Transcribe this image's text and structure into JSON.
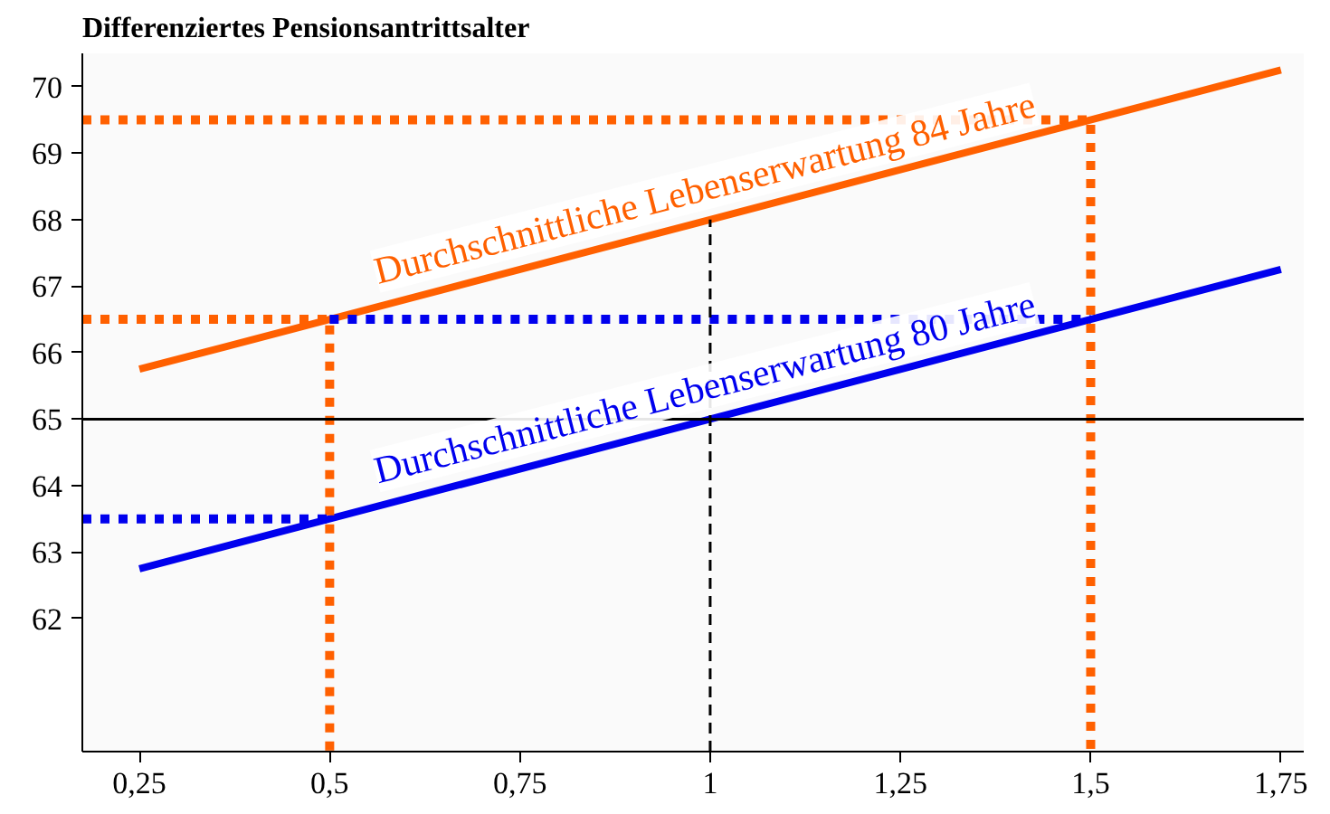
{
  "chart_data": {
    "type": "line",
    "title": "Differenziertes Pensionsantrittsalter",
    "xlim": [
      0.175,
      1.78
    ],
    "ylim": [
      60,
      70.5
    ],
    "xticks": [
      {
        "value": 0.25,
        "label": "0,25"
      },
      {
        "value": 0.5,
        "label": "0,5"
      },
      {
        "value": 0.75,
        "label": "0,75"
      },
      1,
      {
        "value": 1.25,
        "label": "1,25"
      },
      {
        "value": 1.5,
        "label": "1,5"
      },
      {
        "value": 1.75,
        "label": "1,75"
      }
    ],
    "yticks": [
      62,
      63,
      64,
      65,
      66,
      67,
      68,
      69,
      70
    ],
    "grid": false,
    "marker": "none",
    "ref_lines": [
      {
        "axis": "y",
        "value": 65,
        "label": null,
        "color": "#000000",
        "line_style": "solid"
      }
    ],
    "series": [
      {
        "name": "Durchschnittliche Lebenserwartung 84 Jahre",
        "color": "#ff6000",
        "line_style": "solid",
        "x": [
          0.25,
          1.75
        ],
        "values": [
          65.75,
          70.25
        ]
      },
      {
        "name": "Durchschnittliche Lebenserwartung 80 Jahre",
        "color": "#0000ee",
        "line_style": "solid",
        "x": [
          0.25,
          1.75
        ],
        "values": [
          62.75,
          67.25
        ]
      },
      {
        "color": "#ff6000",
        "line_style": "dotted",
        "x": [
          0.175,
          1.5,
          1.5
        ],
        "values": [
          69.5,
          69.5,
          60
        ]
      },
      {
        "color": "#ff6000",
        "line_style": "dotted",
        "x": [
          0.175,
          0.5,
          0.5
        ],
        "values": [
          66.5,
          66.5,
          60
        ]
      },
      {
        "color": "#0000ee",
        "line_style": "dotted",
        "x": [
          0.5,
          1.5
        ],
        "values": [
          66.5,
          66.5
        ]
      },
      {
        "color": "#0000ee",
        "line_style": "dotted",
        "x": [
          0.175,
          0.5
        ],
        "values": [
          63.5,
          63.5
        ]
      },
      {
        "color": "#000000",
        "line_style": "dashed",
        "x": [
          1,
          1
        ],
        "values": [
          60,
          68
        ]
      }
    ]
  }
}
